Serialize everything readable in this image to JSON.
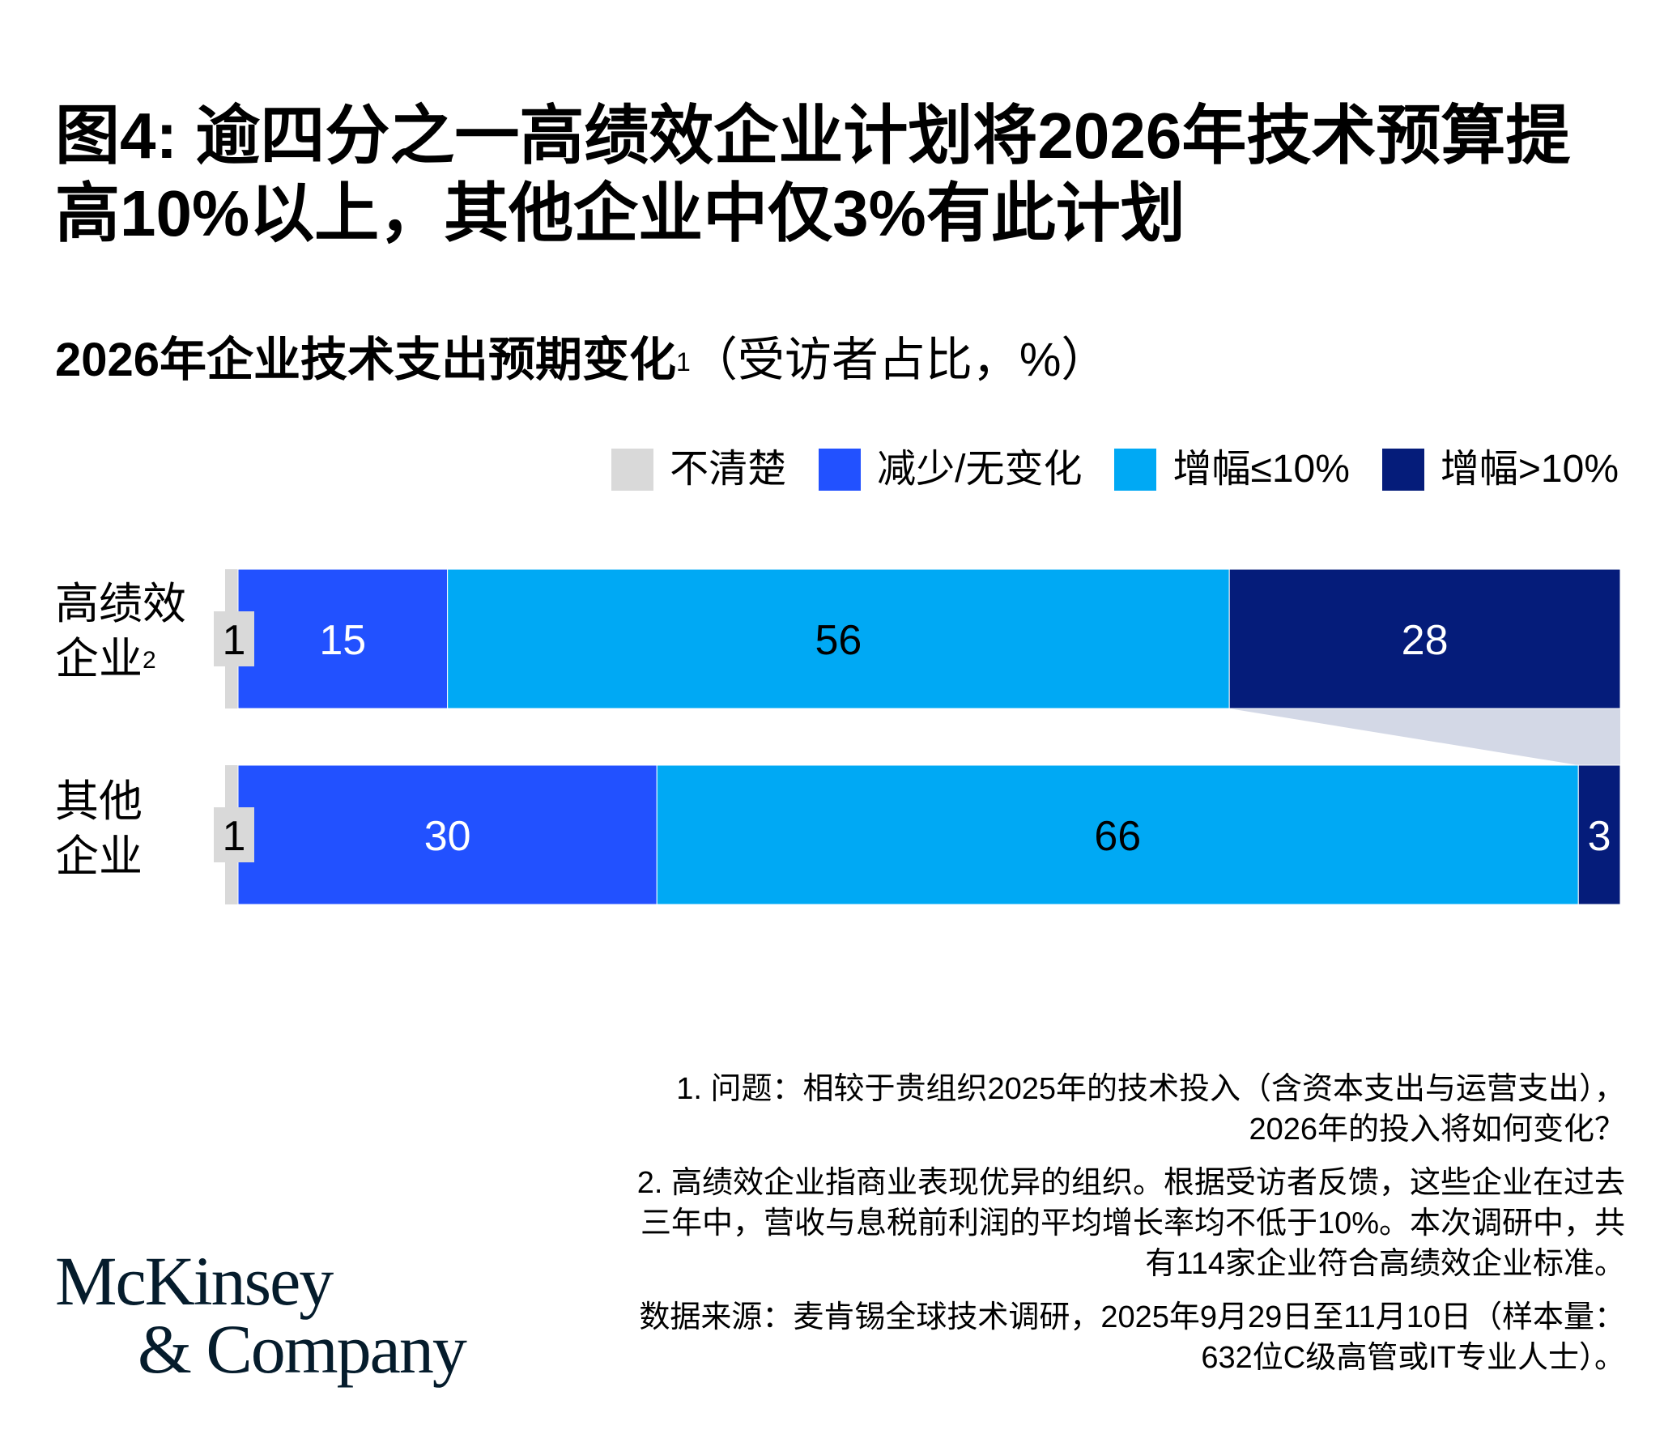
{
  "title": "图4: 逾四分之一高绩效企业计划将2026年技术预算提高10%以上，其他企业中仅3%有此计划",
  "subtitle": {
    "main": "2026年企业技术支出预期变化",
    "footnote_mark": "1",
    "unit": "（受访者占比，%）"
  },
  "colors": {
    "unclear": "#d9d9d9",
    "decrease": "#2251ff",
    "increase_small": "#00a9f4",
    "increase_large": "#051c7a",
    "connector": "#d3d8e6"
  },
  "legend": [
    {
      "label": "不清楚",
      "color": "#d9d9d9"
    },
    {
      "label": "减少/无变化",
      "color": "#2251ff"
    },
    {
      "label": "增幅≤10%",
      "color": "#00a9f4"
    },
    {
      "label": "增幅>10%",
      "color": "#051c7a"
    }
  ],
  "row_labels": {
    "r1_line1": "高绩效",
    "r1_line2": "企业",
    "r1_mark": "2",
    "r2_line1": "其他",
    "r2_line2": "企业"
  },
  "chart_data": {
    "type": "bar",
    "orientation": "horizontal",
    "stacked": true,
    "categories": [
      "高绩效企业",
      "其他企业"
    ],
    "series": [
      {
        "name": "不清楚",
        "values": [
          1,
          1
        ]
      },
      {
        "name": "减少/无变化",
        "values": [
          15,
          30
        ]
      },
      {
        "name": "增幅≤10%",
        "values": [
          56,
          66
        ]
      },
      {
        "name": "增幅>10%",
        "values": [
          28,
          3
        ]
      }
    ],
    "unit": "%",
    "xlim": [
      0,
      100
    ]
  },
  "footnotes": {
    "n1_line1": "1. 问题：相较于贵组织2025年的技术投入（含资本支出与运营支出），",
    "n1_line2": "2026年的投入将如何变化？",
    "n2_line1": "2. 高绩效企业指商业表现优异的组织。根据受访者反馈，这些企业在过去",
    "n2_line2": "三年中，营收与息税前利润的平均增长率均不低于10%。本次调研中，共",
    "n2_line3": "有114家企业符合高绩效企业标准。",
    "source_line1": "数据来源：麦肯锡全球技术调研，2025年9月29日至11月10日（样本量：",
    "source_line2": "632位C级高管或IT专业人士）。"
  },
  "logo": {
    "line1": "McKinsey",
    "line2": "& Company"
  }
}
